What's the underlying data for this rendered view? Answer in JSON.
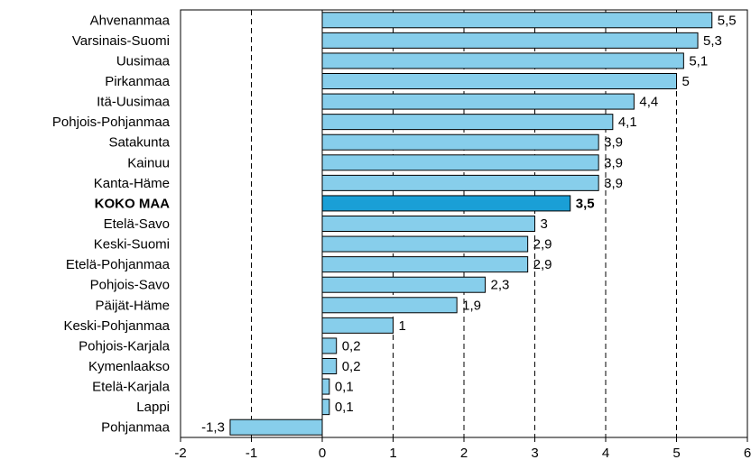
{
  "chart_data": {
    "type": "bar",
    "orientation": "horizontal",
    "categories": [
      "Ahvenanmaa",
      "Varsinais-Suomi",
      "Uusimaa",
      "Pirkanmaa",
      "Itä-Uusimaa",
      "Pohjois-Pohjanmaa",
      "Satakunta",
      "Kainuu",
      "Kanta-Häme",
      "KOKO MAA",
      "Etelä-Savo",
      "Keski-Suomi",
      "Etelä-Pohjanmaa",
      "Pohjois-Savo",
      "Päijät-Häme",
      "Keski-Pohjanmaa",
      "Pohjois-Karjala",
      "Kymenlaakso",
      "Etelä-Karjala",
      "Lappi",
      "Pohjanmaa"
    ],
    "values": [
      5.5,
      5.3,
      5.1,
      5,
      4.4,
      4.1,
      3.9,
      3.9,
      3.9,
      3.5,
      3,
      2.9,
      2.9,
      2.3,
      1.9,
      1,
      0.2,
      0.2,
      0.1,
      0.1,
      -1.3
    ],
    "value_labels": [
      "5,5",
      "5,3",
      "5,1",
      "5",
      "4,4",
      "4,1",
      "3,9",
      "3,9",
      "3,9",
      "3,5",
      "3",
      "2,9",
      "2,9",
      "2,3",
      "1,9",
      "1",
      "0,2",
      "0,2",
      "0,1",
      "0,1",
      "-1,3"
    ],
    "highlight_category": "KOKO MAA",
    "xlim": [
      -2,
      6
    ],
    "xticks": [
      -2,
      -1,
      0,
      1,
      2,
      3,
      4,
      5,
      6
    ],
    "xtick_labels": [
      "-2",
      "-1",
      "0",
      "1",
      "2",
      "3",
      "4",
      "5",
      "6"
    ],
    "grid": "vertical-dashed",
    "colors": {
      "bar": "#87ceeb",
      "highlight": "#1a9fd6",
      "outline": "#000000"
    },
    "title": "",
    "xlabel": "",
    "ylabel": ""
  }
}
